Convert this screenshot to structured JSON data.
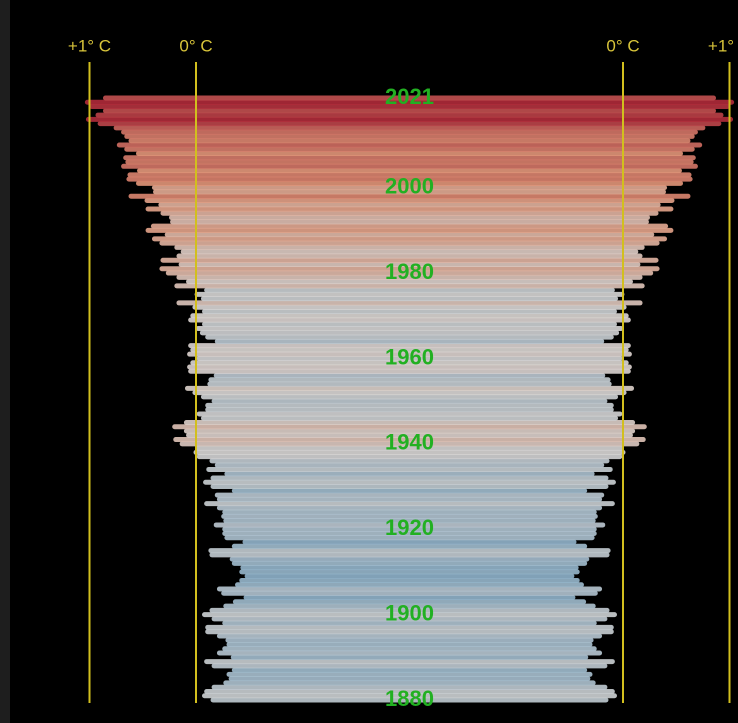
{
  "chart_data": {
    "type": "bar",
    "x": [
      1880,
      1881,
      1882,
      1883,
      1884,
      1885,
      1886,
      1887,
      1888,
      1889,
      1890,
      1891,
      1892,
      1893,
      1894,
      1895,
      1896,
      1897,
      1898,
      1899,
      1900,
      1901,
      1902,
      1903,
      1904,
      1905,
      1906,
      1907,
      1908,
      1909,
      1910,
      1911,
      1912,
      1913,
      1914,
      1915,
      1916,
      1917,
      1918,
      1919,
      1920,
      1921,
      1922,
      1923,
      1924,
      1925,
      1926,
      1927,
      1928,
      1929,
      1930,
      1931,
      1932,
      1933,
      1934,
      1935,
      1936,
      1937,
      1938,
      1939,
      1940,
      1941,
      1942,
      1943,
      1944,
      1945,
      1946,
      1947,
      1948,
      1949,
      1950,
      1951,
      1952,
      1953,
      1954,
      1955,
      1956,
      1957,
      1958,
      1959,
      1960,
      1961,
      1962,
      1963,
      1964,
      1965,
      1966,
      1967,
      1968,
      1969,
      1970,
      1971,
      1972,
      1973,
      1974,
      1975,
      1976,
      1977,
      1978,
      1979,
      1980,
      1981,
      1982,
      1983,
      1984,
      1985,
      1986,
      1987,
      1988,
      1989,
      1990,
      1991,
      1992,
      1993,
      1994,
      1995,
      1996,
      1997,
      1998,
      1999,
      2000,
      2001,
      2002,
      2003,
      2004,
      2005,
      2006,
      2007,
      2008,
      2009,
      2010,
      2011,
      2012,
      2013,
      2014,
      2015,
      2016,
      2017,
      2018,
      2019,
      2020,
      2021
    ],
    "values": [
      -0.16,
      -0.08,
      -0.1,
      -0.17,
      -0.28,
      -0.33,
      -0.31,
      -0.36,
      -0.17,
      -0.1,
      -0.35,
      -0.22,
      -0.27,
      -0.31,
      -0.3,
      -0.22,
      -0.11,
      -0.11,
      -0.27,
      -0.17,
      -0.08,
      -0.15,
      -0.28,
      -0.37,
      -0.47,
      -0.26,
      -0.22,
      -0.39,
      -0.43,
      -0.48,
      -0.43,
      -0.44,
      -0.36,
      -0.34,
      -0.15,
      -0.14,
      -0.36,
      -0.46,
      -0.29,
      -0.27,
      -0.27,
      -0.19,
      -0.28,
      -0.26,
      -0.27,
      -0.22,
      -0.1,
      -0.22,
      -0.2,
      -0.36,
      -0.16,
      -0.09,
      -0.16,
      -0.29,
      -0.12,
      -0.2,
      -0.15,
      -0.03,
      0.0,
      -0.02,
      0.13,
      0.19,
      0.07,
      0.09,
      0.2,
      0.09,
      -0.07,
      -0.03,
      -0.11,
      -0.11,
      -0.17,
      -0.07,
      0.01,
      0.08,
      -0.13,
      -0.14,
      -0.19,
      0.05,
      0.06,
      0.03,
      -0.03,
      0.06,
      0.03,
      0.05,
      -0.2,
      -0.11,
      -0.06,
      -0.02,
      -0.08,
      0.05,
      0.03,
      -0.08,
      0.01,
      0.16,
      -0.07,
      -0.01,
      -0.1,
      0.18,
      0.07,
      0.16,
      0.26,
      0.32,
      0.14,
      0.31,
      0.16,
      0.12,
      0.18,
      0.32,
      0.39,
      0.27,
      0.45,
      0.4,
      0.22,
      0.23,
      0.31,
      0.45,
      0.33,
      0.46,
      0.61,
      0.38,
      0.39,
      0.54,
      0.63,
      0.62,
      0.53,
      0.68,
      0.64,
      0.66,
      0.54,
      0.65,
      0.72,
      0.61,
      0.65,
      0.68,
      0.75,
      0.9,
      1.01,
      0.92,
      0.85,
      0.98,
      1.02,
      0.85
    ],
    "colors": [
      "#8fb3cb",
      "#dcd8d6",
      "#e49a7c",
      "#b02a3a"
    ],
    "xlim": [
      0,
      1
    ],
    "xticks": [
      {
        "value": 1,
        "label": "+1° C"
      },
      {
        "value": 0,
        "label": "0° C"
      }
    ],
    "ylim": [
      1880,
      2021
    ],
    "yticks": [
      1880,
      1900,
      1920,
      1940,
      1960,
      1980,
      2000,
      2021
    ]
  }
}
